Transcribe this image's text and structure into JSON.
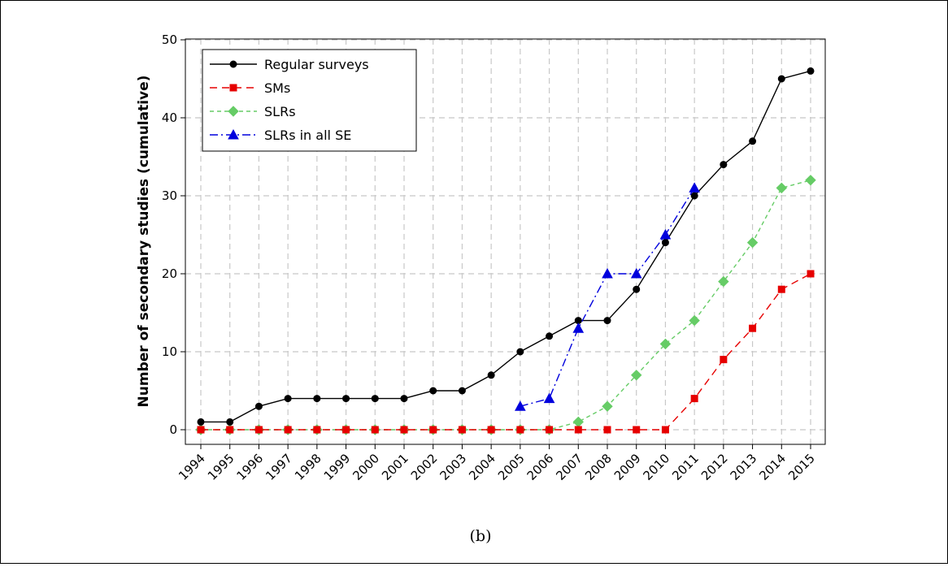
{
  "chart_data": {
    "type": "line",
    "title": "",
    "xlabel": "",
    "ylabel": "Number of secondary studies (cumulative)",
    "ylim": [
      0,
      50
    ],
    "yticks": [
      0,
      10,
      20,
      30,
      40,
      50
    ],
    "grid": true,
    "legend_position": "top-left",
    "categories": [
      "1994",
      "1995",
      "1996",
      "1997",
      "1998",
      "1999",
      "2000",
      "2001",
      "2002",
      "2003",
      "2004",
      "2005",
      "2006",
      "2007",
      "2008",
      "2009",
      "2010",
      "2011",
      "2012",
      "2013",
      "2014",
      "2015"
    ],
    "series": [
      {
        "name": "Regular surveys",
        "color": "#000000",
        "marker": "circle",
        "line": "solid",
        "x": [
          "1994",
          "1995",
          "1996",
          "1997",
          "1998",
          "1999",
          "2000",
          "2001",
          "2002",
          "2003",
          "2004",
          "2005",
          "2006",
          "2007",
          "2008",
          "2009",
          "2010",
          "2011",
          "2012",
          "2013",
          "2014",
          "2015"
        ],
        "values": [
          1,
          1,
          3,
          4,
          4,
          4,
          4,
          4,
          5,
          5,
          7,
          10,
          12,
          14,
          14,
          18,
          24,
          30,
          34,
          37,
          45,
          46
        ]
      },
      {
        "name": "SMs",
        "color": "#e60000",
        "marker": "square",
        "line": "dashed",
        "x": [
          "1994",
          "1995",
          "1996",
          "1997",
          "1998",
          "1999",
          "2000",
          "2001",
          "2002",
          "2003",
          "2004",
          "2005",
          "2006",
          "2007",
          "2008",
          "2009",
          "2010",
          "2011",
          "2012",
          "2013",
          "2014",
          "2015"
        ],
        "values": [
          0,
          0,
          0,
          0,
          0,
          0,
          0,
          0,
          0,
          0,
          0,
          0,
          0,
          0,
          0,
          0,
          0,
          4,
          9,
          13,
          18,
          20
        ]
      },
      {
        "name": "SLRs",
        "color": "#66cc66",
        "marker": "diamond",
        "line": "short-dashed",
        "x": [
          "1994",
          "1995",
          "1996",
          "1997",
          "1998",
          "1999",
          "2000",
          "2001",
          "2002",
          "2003",
          "2004",
          "2005",
          "2006",
          "2007",
          "2008",
          "2009",
          "2010",
          "2011",
          "2012",
          "2013",
          "2014",
          "2015"
        ],
        "values": [
          0,
          0,
          0,
          0,
          0,
          0,
          0,
          0,
          0,
          0,
          0,
          0,
          0,
          1,
          3,
          7,
          11,
          14,
          19,
          24,
          31,
          32
        ]
      },
      {
        "name": "SLRs in all SE",
        "color": "#0000dd",
        "marker": "triangle",
        "line": "dash-dot",
        "x": [
          "2005",
          "2006",
          "2007",
          "2008",
          "2009",
          "2010",
          "2011"
        ],
        "values": [
          3,
          4,
          13,
          20,
          20,
          25,
          31
        ]
      }
    ]
  },
  "caption": "(b)"
}
